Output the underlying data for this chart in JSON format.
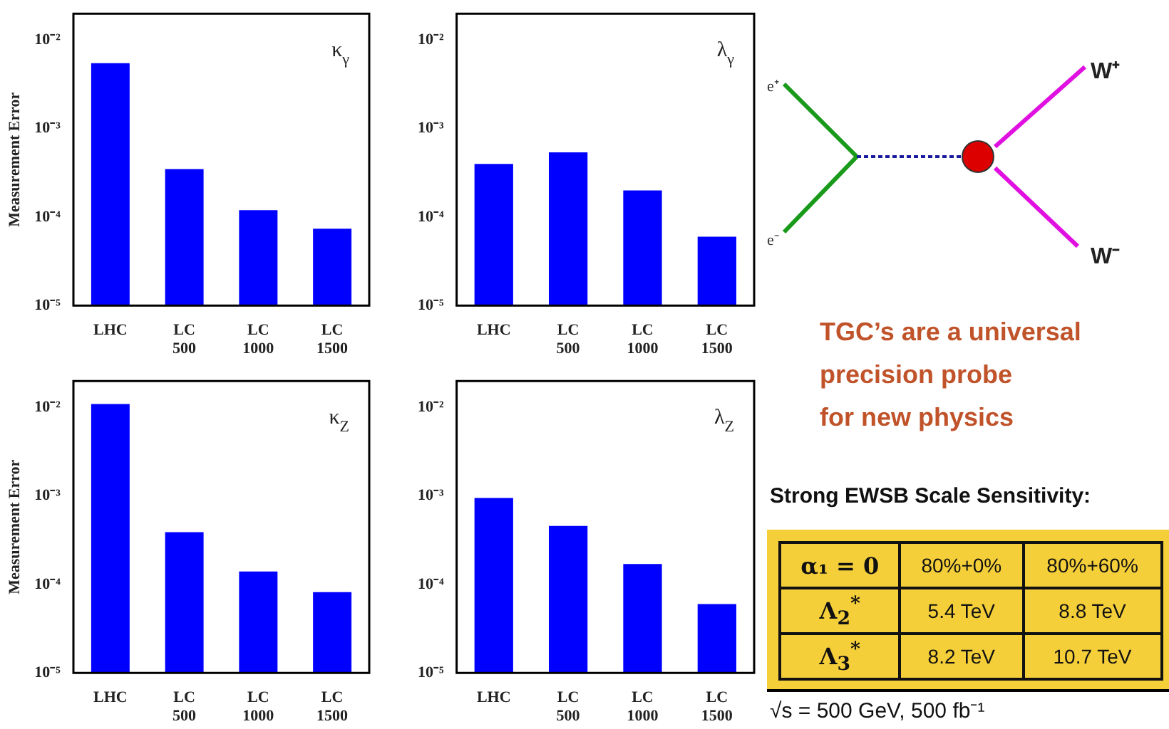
{
  "chart_data": [
    {
      "type": "bar",
      "title": "κ$_{γ}$",
      "ylabel": "Measurement Error",
      "categories": [
        "LHC",
        "LC 500",
        "LC 1000",
        "LC 1500"
      ],
      "values": [
        0.0055,
        0.00035,
        0.00012,
        7.4e-05
      ],
      "color": "#0000ff",
      "log": true,
      "ylim": [
        1e-05,
        0.02
      ],
      "yticks": [
        {
          "value": 0.01,
          "label": "10⁻²"
        },
        {
          "value": 0.001,
          "label": "10⁻³"
        },
        {
          "value": 0.0001,
          "label": "10⁻⁴"
        },
        {
          "value": 1e-05,
          "label": "10⁻⁵"
        }
      ]
    },
    {
      "type": "bar",
      "title": "λ$_{γ}$",
      "categories": [
        "LHC",
        "LC 500",
        "LC 1000",
        "LC 1500"
      ],
      "values": [
        0.0004,
        0.00054,
        0.0002,
        6e-05
      ],
      "color": "#0000ff",
      "log": true,
      "ylim": [
        1e-05,
        0.02
      ],
      "yticks": [
        {
          "value": 0.01,
          "label": "10⁻²"
        },
        {
          "value": 0.001,
          "label": "10⁻³"
        },
        {
          "value": 0.0001,
          "label": "10⁻⁴"
        },
        {
          "value": 1e-05,
          "label": "10⁻⁵"
        }
      ]
    },
    {
      "type": "bar",
      "title": "κ$_{Z}$",
      "ylabel": "Measurement Error",
      "categories": [
        "LHC",
        "LC 500",
        "LC 1000",
        "LC 1500"
      ],
      "values": [
        0.011,
        0.00039,
        0.00014,
        8.2e-05
      ],
      "color": "#0000ff",
      "log": true,
      "ylim": [
        1e-05,
        0.02
      ],
      "yticks": [
        {
          "value": 0.01,
          "label": "10⁻²"
        },
        {
          "value": 0.001,
          "label": "10⁻³"
        },
        {
          "value": 0.0001,
          "label": "10⁻⁴"
        },
        {
          "value": 1e-05,
          "label": "10⁻⁵"
        }
      ]
    },
    {
      "type": "bar",
      "title": "λ$_{Z}$",
      "categories": [
        "LHC",
        "LC 500",
        "LC 1000",
        "LC 1500"
      ],
      "values": [
        0.00095,
        0.00046,
        0.00017,
        6e-05
      ],
      "color": "#0000ff",
      "log": true,
      "ylim": [
        1e-05,
        0.02
      ],
      "yticks": [
        {
          "value": 0.01,
          "label": "10⁻²"
        },
        {
          "value": 0.001,
          "label": "10⁻³"
        },
        {
          "value": 0.0001,
          "label": "10⁻⁴"
        },
        {
          "value": 1e-05,
          "label": "10⁻⁵"
        }
      ]
    },
    {
      "type": "other",
      "title": "Strong EWSB Scale Sensitivity:",
      "annotations": [
        "e⁺",
        "e⁻",
        "W⁺",
        "W⁻",
        "TGC’s are a universal",
        "precision probe",
        "for new physics",
        "α₁ = 0",
        "80%+0%",
        "80%+60%",
        "Λ$_{2}$$^{*}$",
        "5.4 TeV",
        "8.8 TeV",
        "Λ$_{3}$$^{*}$",
        "8.2 TeV",
        "10.7 TeV",
        "√s = 500 GeV, 500 fb⁻¹"
      ]
    }
  ]
}
